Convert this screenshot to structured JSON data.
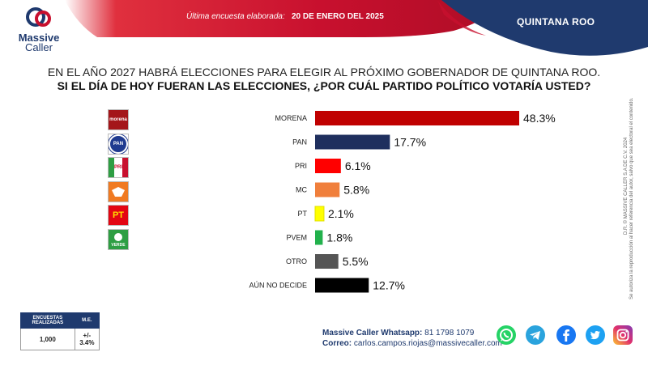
{
  "header": {
    "brand_name": "Massive",
    "brand_sub": "Caller",
    "last_survey_label": "Última encuesta elaborada:",
    "last_survey_date": "20 DE ENERO DEL 2025",
    "region": "QUINTANA ROO",
    "colors": {
      "red": "#c8102e",
      "navy": "#1f3a6e"
    }
  },
  "question": {
    "line1": "EN EL AÑO 2027 HABRÁ ELECCIONES PARA ELEGIR AL PRÓXIMO GOBERNADOR DE QUINTANA ROO.",
    "line2": "SI EL DÍA DE HOY FUERAN LAS ELECCIONES, ¿POR CUÁL PARTIDO POLÍTICO VOTARÍA USTED?"
  },
  "party_logos": [
    {
      "name": "morena-logo-icon",
      "text": "morena",
      "color": "#a4161a"
    },
    {
      "name": "pan-logo-icon",
      "text": "PAN",
      "color": "#1f3a8f"
    },
    {
      "name": "pri-logo-icon",
      "text": "PRI",
      "color": "#c8102e"
    },
    {
      "name": "mc-logo-icon",
      "text": "",
      "color": "#f07a22"
    },
    {
      "name": "pt-logo-icon",
      "text": "PT",
      "color": "#e30613"
    },
    {
      "name": "pvem-logo-icon",
      "text": "VERDE",
      "color": "#2e9e43"
    }
  ],
  "chart_data": {
    "type": "bar",
    "orientation": "horizontal",
    "categories": [
      "MORENA",
      "PAN",
      "PRI",
      "MC",
      "PT",
      "PVEM",
      "OTRO",
      "AÚN NO DECIDE"
    ],
    "values": [
      48.3,
      17.7,
      6.1,
      5.8,
      2.1,
      1.8,
      5.5,
      12.7
    ],
    "value_labels": [
      "48.3%",
      "17.7%",
      "6.1%",
      "5.8%",
      "2.1%",
      "1.8%",
      "5.5%",
      "12.7%"
    ],
    "colors": [
      "#c00000",
      "#1f2f5e",
      "#ff0000",
      "#f07f3c",
      "#ffff00",
      "#22b14c",
      "#555555",
      "#000000"
    ],
    "unit": "%",
    "grid": false,
    "xlim": [
      0,
      60
    ]
  },
  "side_note": {
    "copyright": "D.R. © MASSIVE CALLER S.A DE C.V. 2024",
    "permission": "Se autoriza la reproducción al hacer referencia del autor, salvo que sea electoral el contenido."
  },
  "stats_table": {
    "headers": [
      "ENCUESTAS REALIZADAS",
      "M.E."
    ],
    "values": [
      "1,000",
      "+/- 3.4%"
    ]
  },
  "contact": {
    "whatsapp_label": "Massive Caller Whatsapp:",
    "whatsapp_number": "81 1798 1079",
    "email_label": "Correo:",
    "email": "carlos.campos.riojas@massivecaller.com"
  },
  "social": [
    {
      "name": "whatsapp-icon",
      "color": "#25d366"
    },
    {
      "name": "telegram-icon",
      "color": "#2aa3dd"
    },
    {
      "name": "facebook-icon",
      "color": "#1877f2"
    },
    {
      "name": "twitter-icon",
      "color": "#1da1f2"
    },
    {
      "name": "instagram-icon",
      "color": "#d6249f"
    }
  ]
}
